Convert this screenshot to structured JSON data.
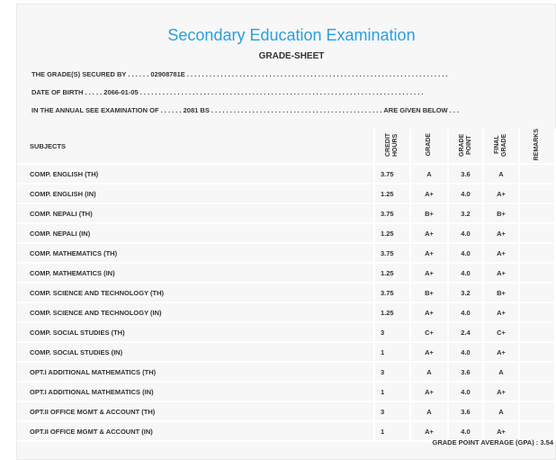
{
  "header": {
    "title": "Secondary Education Examination",
    "subtitle": "GRADE-SHEET"
  },
  "info": {
    "secured_by_label": "THE GRADE(S) SECURED BY . . . . . .",
    "symbol_no": "02908781E",
    "secured_by_dots": ". . . . . . . . . . . . . . . . . . . . . . . . . . . . . . . . . . . . . . . . . . . . . . . . . . . . . . . . . . . . . . . . . . . . . .",
    "dob_label": "DATE OF BIRTH . . . . .",
    "dob": "2066-01-05",
    "dob_dots": ". . . . . . . . . . . . . . . . . . . . . . . . . . . . . . . . . . . . . . . . . . . . . . . . . . . . . . . . . . . . . . . . . . . . . . . . . . . .",
    "exam_label": "IN THE ANNUAL SEE EXAMINATION OF . . . . . .",
    "exam_year": "2081 BS",
    "exam_dots": ". . . . . . . . . . . . . . . . . . . . . . . . . . . . . . . . . . . . . . . . . . . . . .",
    "exam_tail": "ARE GIVEN BELOW . . ."
  },
  "table": {
    "headers": {
      "subjects": "SUBJECTS",
      "credit_hours": "CREDIT HOURS",
      "grade": "GRADE",
      "grade_point": "GRADE POINT",
      "final_grade": "FINAL GRADE",
      "remarks": "REMARKS"
    },
    "rows": [
      {
        "subject": "COMP. ENGLISH (TH)",
        "credit": "3.75",
        "grade": "A",
        "gp": "3.6",
        "final": "A"
      },
      {
        "subject": "COMP. ENGLISH (IN)",
        "credit": "1.25",
        "grade": "A+",
        "gp": "4.0",
        "final": "A+"
      },
      {
        "subject": "COMP. NEPALI (TH)",
        "credit": "3.75",
        "grade": "B+",
        "gp": "3.2",
        "final": "B+"
      },
      {
        "subject": "COMP. NEPALI (IN)",
        "credit": "1.25",
        "grade": "A+",
        "gp": "4.0",
        "final": "A+"
      },
      {
        "subject": "COMP. MATHEMATICS (TH)",
        "credit": "3.75",
        "grade": "A+",
        "gp": "4.0",
        "final": "A+"
      },
      {
        "subject": "COMP. MATHEMATICS (IN)",
        "credit": "1.25",
        "grade": "A+",
        "gp": "4.0",
        "final": "A+"
      },
      {
        "subject": "COMP. SCIENCE AND TECHNOLOGY (TH)",
        "credit": "3.75",
        "grade": "B+",
        "gp": "3.2",
        "final": "B+"
      },
      {
        "subject": "COMP. SCIENCE AND TECHNOLOGY (IN)",
        "credit": "1.25",
        "grade": "A+",
        "gp": "4.0",
        "final": "A+"
      },
      {
        "subject": "COMP. SOCIAL STUDIES (TH)",
        "credit": "3",
        "grade": "C+",
        "gp": "2.4",
        "final": "C+"
      },
      {
        "subject": "COMP. SOCIAL STUDIES (IN)",
        "credit": "1",
        "grade": "A+",
        "gp": "4.0",
        "final": "A+"
      },
      {
        "subject": "OPT.I ADDITIONAL MATHEMATICS (TH)",
        "credit": "3",
        "grade": "A",
        "gp": "3.6",
        "final": "A"
      },
      {
        "subject": "OPT.I ADDITIONAL MATHEMATICS (IN)",
        "credit": "1",
        "grade": "A+",
        "gp": "4.0",
        "final": "A+"
      },
      {
        "subject": "OPT.II OFFICE MGMT & ACCOUNT (TH)",
        "credit": "3",
        "grade": "A",
        "gp": "3.6",
        "final": "A"
      },
      {
        "subject": "OPT.II OFFICE MGMT & ACCOUNT (IN)",
        "credit": "1",
        "grade": "A+",
        "gp": "4.0",
        "final": "A+"
      }
    ]
  },
  "gpa": {
    "label": "GRADE POINT AVERAGE (GPA) :",
    "value": "3.54"
  }
}
